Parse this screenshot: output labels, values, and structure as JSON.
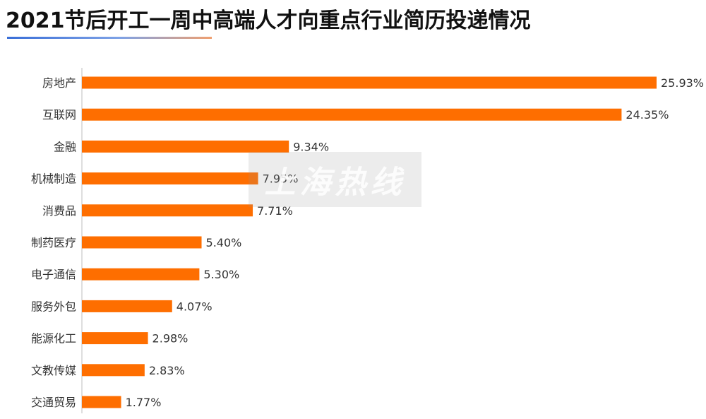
{
  "chart_data": {
    "type": "bar",
    "orientation": "horizontal",
    "title": "2021节后开工一周中高端人才向重点行业简历投递情况",
    "categories": [
      "房地产",
      "互联网",
      "金融",
      "机械制造",
      "消费品",
      "制药医疗",
      "电子通信",
      "服务外包",
      "能源化工",
      "文教传媒",
      "交通贸易"
    ],
    "values": [
      25.93,
      24.35,
      9.34,
      7.95,
      7.71,
      5.4,
      5.3,
      4.07,
      2.98,
      2.83,
      1.77
    ],
    "value_labels": [
      "25.93%",
      "24.35%",
      "9.34%",
      "7.95%",
      "7.71%",
      "5.40%",
      "5.30%",
      "4.07%",
      "2.98%",
      "2.83%",
      "1.77%"
    ],
    "xlim": [
      0,
      25.93
    ],
    "bar_color": "#fe6e00",
    "grid": false,
    "legend": "none"
  },
  "watermark": {
    "text": "上海热线"
  }
}
